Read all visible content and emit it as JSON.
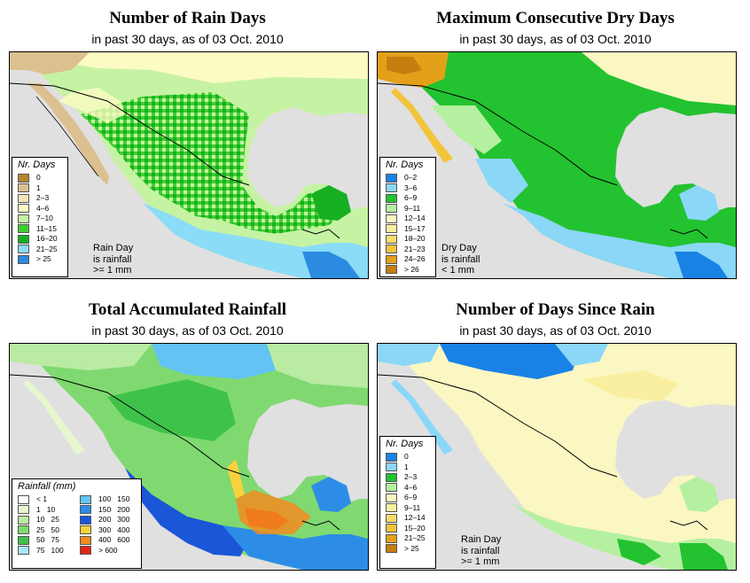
{
  "panels": [
    {
      "title": "Number of Rain Days",
      "subtitle": "in past 30 days, as of  03 Oct. 2010",
      "legend": {
        "title": "Nr. Days",
        "items": [
          {
            "label": "0",
            "color": "#b5862f"
          },
          {
            "label": "1",
            "color": "#dcc08f"
          },
          {
            "label": "2–3",
            "color": "#f4e4b9"
          },
          {
            "label": "4–6",
            "color": "#fbfbc2"
          },
          {
            "label": "7–10",
            "color": "#c6f3a3"
          },
          {
            "label": "11–15",
            "color": "#3fcf2f"
          },
          {
            "label": "16–20",
            "color": "#16b022"
          },
          {
            "label": "21–25",
            "color": "#8adcf7"
          },
          {
            "label": "> 25",
            "color": "#2a8be0"
          }
        ]
      },
      "note": [
        "Rain Day",
        "is rainfall",
        ">= 1 mm"
      ]
    },
    {
      "title": "Maximum Consecutive Dry Days",
      "subtitle": "in past 30 days, as of  03 Oct. 2010",
      "legend": {
        "title": "Nr. Days",
        "items": [
          {
            "label": "0–2",
            "color": "#1a82e6"
          },
          {
            "label": "3–6",
            "color": "#8ad7f7"
          },
          {
            "label": "6–9",
            "color": "#23c230"
          },
          {
            "label": "9–11",
            "color": "#b4f0a0"
          },
          {
            "label": "12–14",
            "color": "#fbf7c2"
          },
          {
            "label": "15–17",
            "color": "#faefa0"
          },
          {
            "label": "18–20",
            "color": "#f6dc6a"
          },
          {
            "label": "21–23",
            "color": "#f2c43c"
          },
          {
            "label": "24–26",
            "color": "#e3a119"
          },
          {
            "label": "> 26",
            "color": "#c57f0f"
          }
        ]
      },
      "note": [
        "Dry Day",
        "is rainfall",
        "< 1 mm"
      ]
    },
    {
      "title": "Total Accumulated Rainfall",
      "subtitle": "in past 30 days, as of  03 Oct. 2010",
      "legend": {
        "title": "Rainfall (mm)",
        "items": [
          {
            "label": "< 1",
            "color": "#ffffff"
          },
          {
            "label": "1   10",
            "color": "#e6f6cf"
          },
          {
            "label": "10   25",
            "color": "#b9eba3"
          },
          {
            "label": "25   50",
            "color": "#7fd970"
          },
          {
            "label": "50   75",
            "color": "#3fc24a"
          },
          {
            "label": "75   100",
            "color": "#a6e6f8"
          },
          {
            "label": "100   150",
            "color": "#63c3f2"
          },
          {
            "label": "150   200",
            "color": "#2d8de6"
          },
          {
            "label": "200   300",
            "color": "#1a56d8"
          },
          {
            "label": "300   400",
            "color": "#f7d23c"
          },
          {
            "label": "400   600",
            "color": "#f28b1e"
          },
          {
            "label": "> 600",
            "color": "#e0251a"
          }
        ]
      },
      "note": []
    },
    {
      "title": "Number of Days Since Rain",
      "subtitle": "in past 30 days, as of  03 Oct. 2010",
      "legend": {
        "title": "Nr. Days",
        "items": [
          {
            "label": "0",
            "color": "#1a82e6"
          },
          {
            "label": "1",
            "color": "#8ad7f7"
          },
          {
            "label": "2–3",
            "color": "#23c230"
          },
          {
            "label": "4–6",
            "color": "#b4f0a0"
          },
          {
            "label": "6–9",
            "color": "#fbf7c2"
          },
          {
            "label": "9–11",
            "color": "#faefa0"
          },
          {
            "label": "12–14",
            "color": "#f6dc6a"
          },
          {
            "label": "15–20",
            "color": "#f2c43c"
          },
          {
            "label": "21–25",
            "color": "#e3a119"
          },
          {
            "label": "> 25",
            "color": "#c57f0f"
          }
        ]
      },
      "note": [
        "Rain Day",
        "is rainfall",
        ">= 1 mm"
      ]
    }
  ],
  "colors": {
    "ocean": "#e0e0e0",
    "border": "#000000"
  }
}
